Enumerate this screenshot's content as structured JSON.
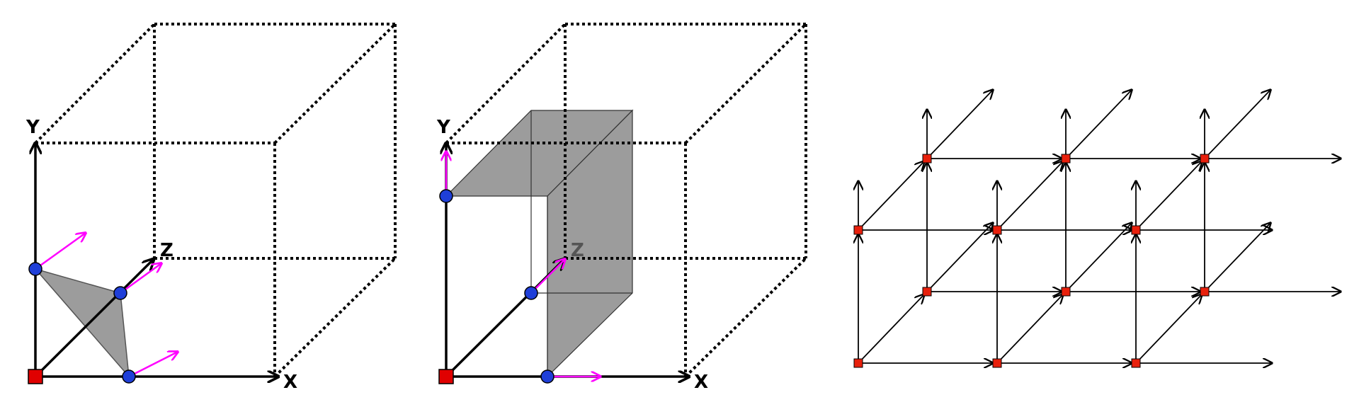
{
  "colors": {
    "axis": "#000000",
    "dotted_edge": "#000000",
    "origin_marker": "#e00000",
    "vertex_marker": "#1f3fd8",
    "normal_arrow": "#ff00ff",
    "shaded_face": "#9c9c9c",
    "grid_line": "#000000",
    "grid_marker": "#e8200c"
  },
  "panels": [
    {
      "name": "triangle-panel",
      "axis_labels": {
        "x": "X",
        "y": "Y",
        "z": "Z"
      }
    },
    {
      "name": "slab-panel",
      "axis_labels": {
        "x": "X",
        "y": "Y",
        "z": "Z"
      }
    },
    {
      "name": "lattice-panel"
    }
  ],
  "lattice": {
    "columns": 3,
    "rows": 2,
    "layers": 2
  }
}
